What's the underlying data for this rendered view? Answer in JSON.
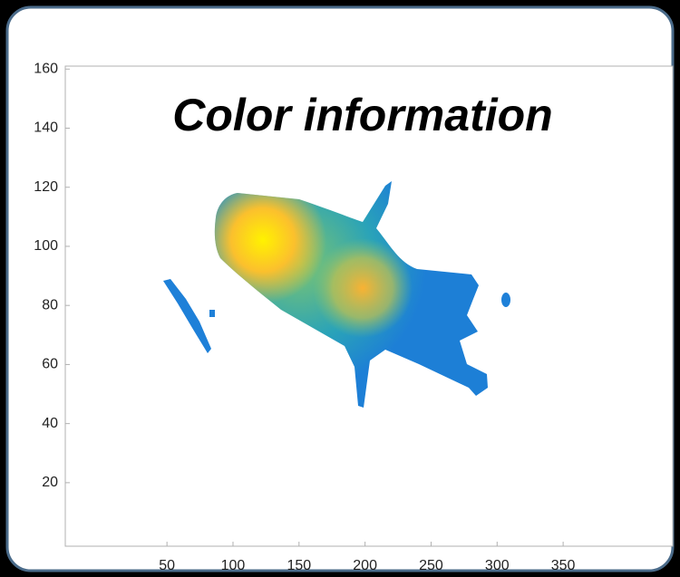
{
  "chart_data": {
    "type": "image",
    "title": "Color information",
    "xlim": [
      -27,
      433
    ],
    "ylim": [
      -1.5,
      161
    ],
    "xticks": [
      50,
      100,
      150,
      200,
      250,
      300,
      350
    ],
    "yticks": [
      20,
      40,
      60,
      80,
      100,
      120,
      140,
      160
    ]
  }
}
